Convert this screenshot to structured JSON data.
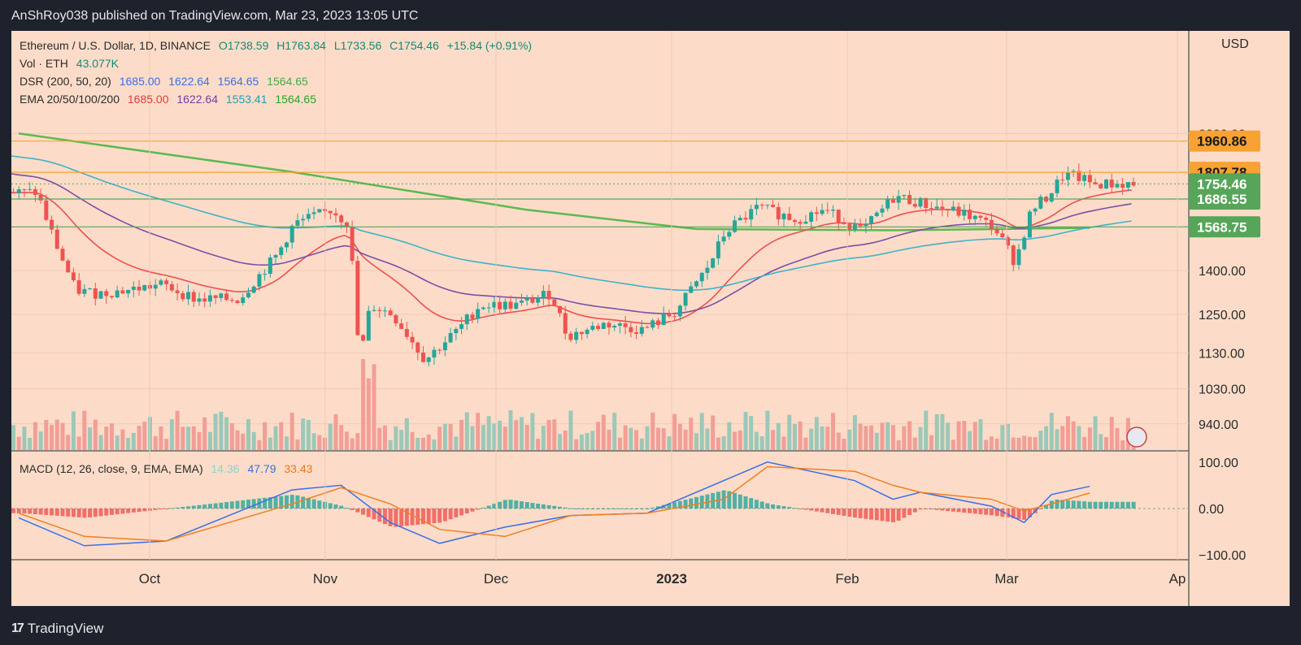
{
  "header": {
    "publisher_line": "AnShRoy038 published on TradingView.com, Mar 23, 2023 13:05 UTC"
  },
  "footer": {
    "brand": "TradingView",
    "brand_mark": "17"
  },
  "legend": {
    "symbol": "Ethereum / U.S. Dollar, 1D, BINANCE",
    "open": "O1738.59",
    "high": "H1763.84",
    "low": "L1733.56",
    "close": "C1754.46",
    "change": "+15.84 (+0.91%)",
    "vol_label": "Vol · ETH",
    "vol_value": "43.077K",
    "dsr_label": "DSR (200, 50, 20)",
    "dsr_v1": "1685.00",
    "dsr_v2": "1622.64",
    "dsr_v3": "1564.65",
    "dsr_v4": "1564.65",
    "ema_label": "EMA 20/50/100/200",
    "ema_v1": "1685.00",
    "ema_v2": "1622.64",
    "ema_v3": "1553.41",
    "ema_v4": "1564.65",
    "macd_label": "MACD (12, 26, close, 9, EMA, EMA)",
    "macd_hist": "14.36",
    "macd_line": "47.79",
    "macd_signal": "33.43"
  },
  "price_axis": {
    "currency": "USD"
  },
  "colors": {
    "background": "#fcdcc8",
    "up": "#26a69a",
    "down": "#ef5350",
    "ema20": "#ef4f4f",
    "ema50": "#7b4fa8",
    "ema100": "#3fb3c9",
    "ema200": "#3fb33c",
    "macd": "#3a6fe8",
    "signal": "#f07f24",
    "price_tag": "#56a559",
    "resistance_tag": "#f7a233"
  },
  "chart_data": {
    "type": "candlestick",
    "title": "Ethereum / U.S. Dollar, 1D, BINANCE",
    "y_scale": "log",
    "price_ticks": [
      "2000.00",
      "1400.00",
      "1250.00",
      "1130.00",
      "1030.00",
      "940.00"
    ],
    "x_ticks": [
      "Oct",
      "Nov",
      "Dec",
      "2023",
      "Feb",
      "Mar",
      "Ap"
    ],
    "macd_ticks": [
      "100.00",
      "0.00",
      "−100.00"
    ],
    "horizontal_levels": [
      {
        "label": "1960.86",
        "value": 1960.86,
        "kind": "resistance"
      },
      {
        "label": "1807.78",
        "value": 1807.78,
        "kind": "resistance"
      },
      {
        "label": "1686.55",
        "value": 1686.55,
        "kind": "support"
      },
      {
        "label": "1568.75",
        "value": 1568.75,
        "kind": "support"
      }
    ],
    "last_price": {
      "label": "1754.46",
      "value": 1754.46
    },
    "close_series": [
      {
        "date": "2022-09-11",
        "close": 1715
      },
      {
        "date": "2022-09-13",
        "close": 1580
      },
      {
        "date": "2022-09-15",
        "close": 1470
      },
      {
        "date": "2022-09-18",
        "close": 1330
      },
      {
        "date": "2022-09-22",
        "close": 1320
      },
      {
        "date": "2022-09-27",
        "close": 1330
      },
      {
        "date": "2022-10-04",
        "close": 1350
      },
      {
        "date": "2022-10-10",
        "close": 1300
      },
      {
        "date": "2022-10-18",
        "close": 1300
      },
      {
        "date": "2022-10-25",
        "close": 1460
      },
      {
        "date": "2022-10-28",
        "close": 1580
      },
      {
        "date": "2022-11-04",
        "close": 1640
      },
      {
        "date": "2022-11-07",
        "close": 1580
      },
      {
        "date": "2022-11-09",
        "close": 1100
      },
      {
        "date": "2022-11-11",
        "close": 1280
      },
      {
        "date": "2022-11-15",
        "close": 1250
      },
      {
        "date": "2022-11-21",
        "close": 1110
      },
      {
        "date": "2022-11-27",
        "close": 1200
      },
      {
        "date": "2022-12-01",
        "close": 1280
      },
      {
        "date": "2022-12-08",
        "close": 1280
      },
      {
        "date": "2022-12-14",
        "close": 1320
      },
      {
        "date": "2022-12-17",
        "close": 1180
      },
      {
        "date": "2022-12-24",
        "close": 1220
      },
      {
        "date": "2022-12-31",
        "close": 1200
      },
      {
        "date": "2023-01-06",
        "close": 1260
      },
      {
        "date": "2023-01-12",
        "close": 1420
      },
      {
        "date": "2023-01-15",
        "close": 1550
      },
      {
        "date": "2023-01-21",
        "close": 1650
      },
      {
        "date": "2023-01-28",
        "close": 1600
      },
      {
        "date": "2023-02-02",
        "close": 1640
      },
      {
        "date": "2023-02-09",
        "close": 1550
      },
      {
        "date": "2023-02-15",
        "close": 1700
      },
      {
        "date": "2023-02-21",
        "close": 1660
      },
      {
        "date": "2023-02-28",
        "close": 1620
      },
      {
        "date": "2023-03-05",
        "close": 1570
      },
      {
        "date": "2023-03-09",
        "close": 1430
      },
      {
        "date": "2023-03-12",
        "close": 1640
      },
      {
        "date": "2023-03-15",
        "close": 1700
      },
      {
        "date": "2023-03-18",
        "close": 1800
      },
      {
        "date": "2023-03-21",
        "close": 1780
      },
      {
        "date": "2023-03-23",
        "close": 1754
      }
    ],
    "ema200_series": [
      {
        "date": "2022-09-08",
        "value": 2000
      },
      {
        "date": "2022-10-28",
        "value": 1810
      },
      {
        "date": "2022-12-10",
        "value": 1640
      },
      {
        "date": "2023-01-10",
        "value": 1560
      },
      {
        "date": "2023-02-15",
        "value": 1555
      },
      {
        "date": "2023-03-23",
        "value": 1564.65
      }
    ],
    "macd_series": [
      {
        "date": "2022-09-08",
        "macd": -20,
        "signal": -10
      },
      {
        "date": "2022-09-20",
        "macd": -80,
        "signal": -60
      },
      {
        "date": "2022-10-05",
        "macd": -70,
        "signal": -70
      },
      {
        "date": "2022-10-28",
        "macd": 40,
        "signal": 10
      },
      {
        "date": "2022-11-06",
        "macd": 50,
        "signal": 45
      },
      {
        "date": "2022-11-15",
        "macd": -30,
        "signal": 10
      },
      {
        "date": "2022-11-24",
        "macd": -75,
        "signal": -45
      },
      {
        "date": "2022-12-06",
        "macd": -40,
        "signal": -60
      },
      {
        "date": "2022-12-18",
        "macd": -15,
        "signal": -15
      },
      {
        "date": "2023-01-01",
        "macd": -10,
        "signal": -10
      },
      {
        "date": "2023-01-15",
        "macd": 60,
        "signal": 20
      },
      {
        "date": "2023-01-23",
        "macd": 100,
        "signal": 90
      },
      {
        "date": "2023-02-08",
        "macd": 60,
        "signal": 80
      },
      {
        "date": "2023-02-15",
        "macd": 20,
        "signal": 50
      },
      {
        "date": "2023-02-20",
        "macd": 35,
        "signal": 35
      },
      {
        "date": "2023-03-05",
        "macd": 5,
        "signal": 20
      },
      {
        "date": "2023-03-11",
        "macd": -30,
        "signal": -5
      },
      {
        "date": "2023-03-16",
        "macd": 30,
        "signal": 10
      },
      {
        "date": "2023-03-23",
        "macd": 47.79,
        "signal": 33.43
      }
    ]
  }
}
